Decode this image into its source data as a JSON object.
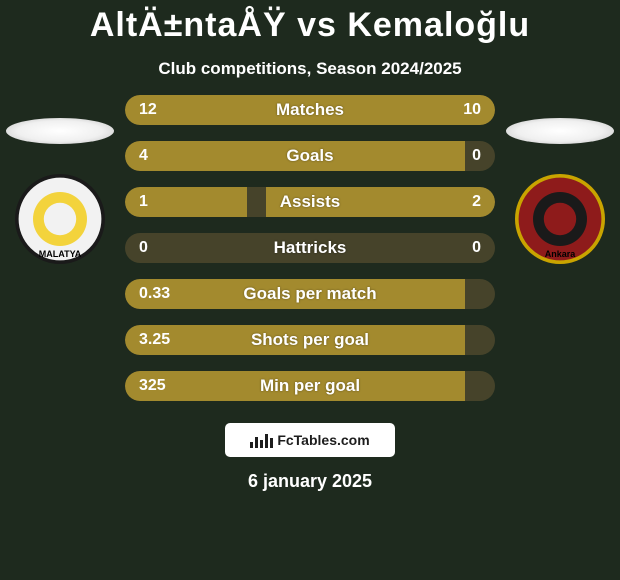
{
  "title": "AltÄ±ntaÅŸ vs Kemaloğlu",
  "subtitle": "Club competitions, Season 2024/2025",
  "colors": {
    "bar_left": "#a38a2e",
    "bar_right": "#a38a2e",
    "row_bg": "#46432a",
    "empty_bg": "#3a3a2a"
  },
  "stats": [
    {
      "label": "Matches",
      "left_text": "12",
      "right_text": "10",
      "left_pct": 50,
      "right_pct": 50
    },
    {
      "label": "Goals",
      "left_text": "4",
      "right_text": "0",
      "left_pct": 92,
      "right_pct": 0
    },
    {
      "label": "Assists",
      "left_text": "1",
      "right_text": "2",
      "left_pct": 33,
      "right_pct": 62
    },
    {
      "label": "Hattricks",
      "left_text": "0",
      "right_text": "0",
      "left_pct": 0,
      "right_pct": 0
    },
    {
      "label": "Goals per match",
      "left_text": "0.33",
      "right_text": "",
      "left_pct": 92,
      "right_pct": 0
    },
    {
      "label": "Shots per goal",
      "left_text": "3.25",
      "right_text": "",
      "left_pct": 92,
      "right_pct": 0
    },
    {
      "label": "Min per goal",
      "left_text": "325",
      "right_text": "",
      "left_pct": 92,
      "right_pct": 0
    }
  ],
  "left_team": {
    "crest_bg": "#f2f2f2",
    "crest_ring": "#1a1a1a",
    "crest_accent": "#f3d33c",
    "crest_label": "MALATYA"
  },
  "right_team": {
    "crest_bg": "#8e1b1b",
    "crest_ring": "#c9a400",
    "crest_accent": "#1a1a1a",
    "crest_label": "Ankara"
  },
  "footer_brand": "FcTables.com",
  "date": "6 january 2025"
}
